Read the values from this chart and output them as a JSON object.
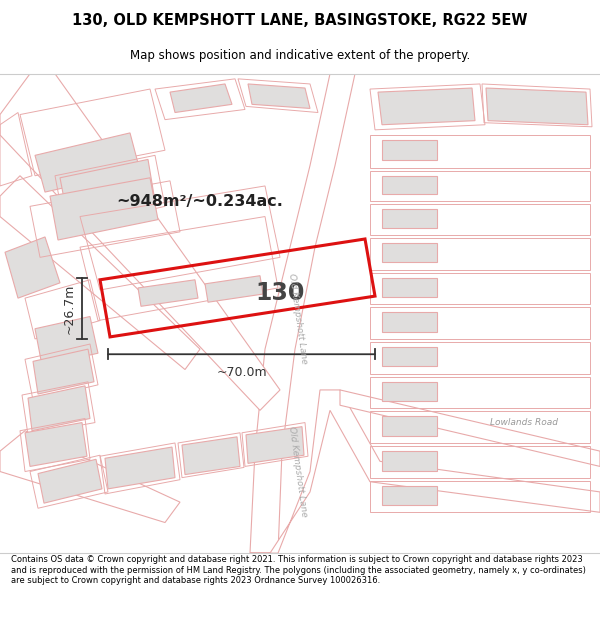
{
  "title_line1": "130, OLD KEMPSHOTT LANE, BASINGSTOKE, RG22 5EW",
  "title_line2": "Map shows position and indicative extent of the property.",
  "footer_text": "Contains OS data © Crown copyright and database right 2021. This information is subject to Crown copyright and database rights 2023 and is reproduced with the permission of HM Land Registry. The polygons (including the associated geometry, namely x, y co-ordinates) are subject to Crown copyright and database rights 2023 Ordnance Survey 100026316.",
  "map_bg": "#f7f6f4",
  "road_line_color": "#e8aaaa",
  "highlight_color": "#dd1111",
  "building_stroke": "#e8aaaa",
  "building_fill": "#e0dedd",
  "area_label": "~948m²/~0.234ac.",
  "parcel_label": "130",
  "dim_width": "~70.0m",
  "dim_height": "~26.7m",
  "road_label1": "Lowlands Road",
  "road_label2": "Old Kempshott Lane",
  "road_label2b": "Old Kempshott Lane"
}
